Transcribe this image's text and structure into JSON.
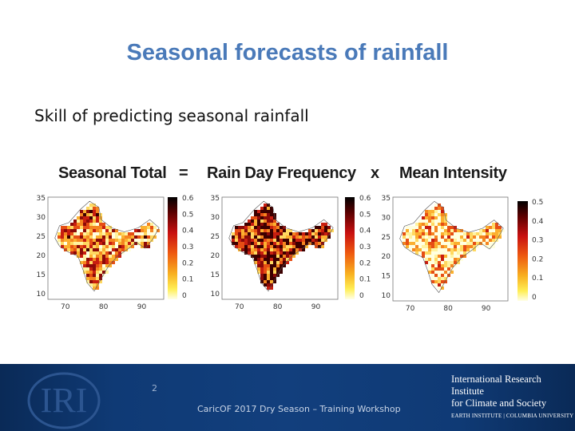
{
  "slide": {
    "title": "Seasonal forecasts of rainfall",
    "subtitle": "Skill of predicting seasonal rainfall"
  },
  "equation": {
    "term1": "Seasonal Total",
    "op1": "=",
    "term2": "Rain Day Frequency",
    "op2": "x",
    "term3": "Mean Intensity"
  },
  "maps": [
    {
      "name": "Seasonal Total",
      "yticks": [
        "35",
        "30",
        "25",
        "20",
        "15",
        "10"
      ],
      "xticks": [
        "70",
        "80",
        "90"
      ],
      "colorbar": [
        "0.6",
        "0.5",
        "0.4",
        "0.3",
        "0.2",
        "0.1",
        "0"
      ],
      "intensity": 0.45
    },
    {
      "name": "Rain Day Frequency",
      "yticks": [
        "35",
        "30",
        "25",
        "20",
        "15",
        "10"
      ],
      "xticks": [
        "70",
        "80",
        "90"
      ],
      "colorbar": [
        "0.6",
        "0.5",
        "0.4",
        "0.3",
        "0.2",
        "0.1",
        "0"
      ],
      "intensity": 0.7
    },
    {
      "name": "Mean Intensity",
      "yticks": [
        "35",
        "30",
        "25",
        "20",
        "15",
        "10"
      ],
      "xticks": [
        "70",
        "80",
        "90"
      ],
      "colorbar": [
        "0.5",
        "0.4",
        "0.3",
        "0.2",
        "0.1",
        "0"
      ],
      "intensity": 0.25
    }
  ],
  "colors": {
    "title": "#4a7ab9",
    "footer": "#0f3a75"
  },
  "footer": {
    "page_number": "2",
    "text": "CaricOF 2017 Dry Season – Training Workshop",
    "logo_text": "IRI",
    "institute_line1": "International Research Institute",
    "institute_line2": "for Climate and Society",
    "institute_line3": "EARTH INSTITUTE | COLUMBIA UNIVERSITY"
  }
}
